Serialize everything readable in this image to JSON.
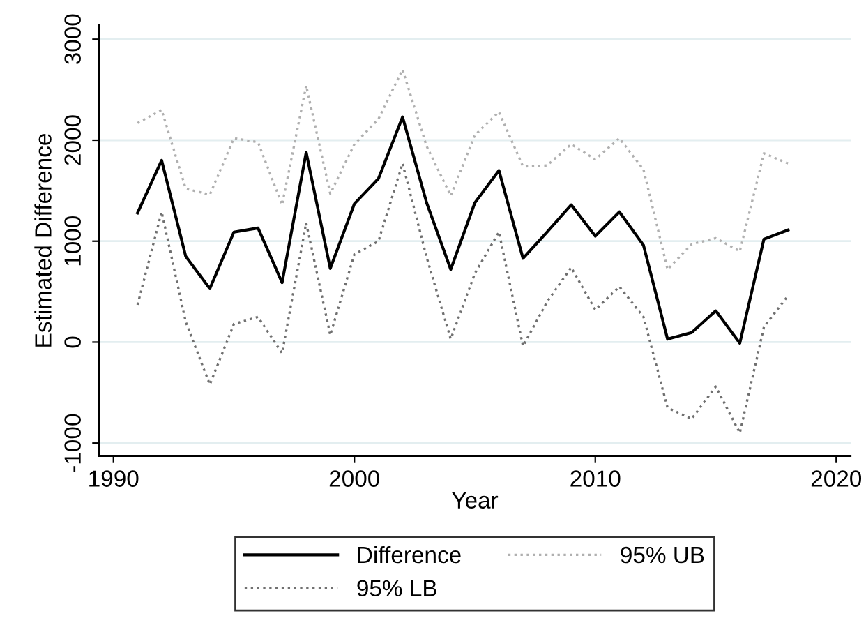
{
  "chart_data": {
    "type": "line",
    "xlabel": "Year",
    "ylabel": "Estimated Difference",
    "x": [
      1991,
      1992,
      1993,
      1994,
      1995,
      1996,
      1997,
      1998,
      1999,
      2000,
      2001,
      2002,
      2003,
      2004,
      2005,
      2006,
      2007,
      2008,
      2009,
      2010,
      2011,
      2012,
      2013,
      2014,
      2015,
      2016,
      2017,
      2018
    ],
    "series": [
      {
        "name": "Difference",
        "color": "#000000",
        "line_style": "solid",
        "values": [
          1280,
          1800,
          850,
          530,
          1090,
          1130,
          590,
          1880,
          730,
          1370,
          1620,
          2230,
          1380,
          720,
          1380,
          1700,
          830,
          1090,
          1360,
          1050,
          1290,
          960,
          30,
          95,
          310,
          -10,
          1020,
          1110
        ]
      },
      {
        "name": "95% UB",
        "color": "#b0b0b0",
        "line_style": "dotted",
        "values": [
          2170,
          2300,
          1520,
          1460,
          2020,
          1980,
          1360,
          2540,
          1470,
          1960,
          2210,
          2700,
          1940,
          1450,
          2050,
          2280,
          1740,
          1750,
          1960,
          1810,
          2020,
          1710,
          720,
          970,
          1030,
          900,
          1870,
          1770
        ]
      },
      {
        "name": "95% LB",
        "color": "#707070",
        "line_style": "dotted",
        "values": [
          370,
          1290,
          200,
          -420,
          180,
          250,
          -110,
          1180,
          70,
          870,
          1000,
          1770,
          840,
          30,
          680,
          1090,
          -40,
          400,
          740,
          320,
          550,
          250,
          -650,
          -760,
          -440,
          -900,
          150,
          460
        ]
      }
    ],
    "xlim": [
      1989.4,
      2020.6
    ],
    "ylim": [
      -1130,
      3140
    ],
    "xticks": [
      1990,
      2000,
      2010,
      2020
    ],
    "yticks": [
      -1000,
      0,
      1000,
      2000,
      3000
    ],
    "grid": "y",
    "legend": "bottom",
    "marker": "none"
  }
}
